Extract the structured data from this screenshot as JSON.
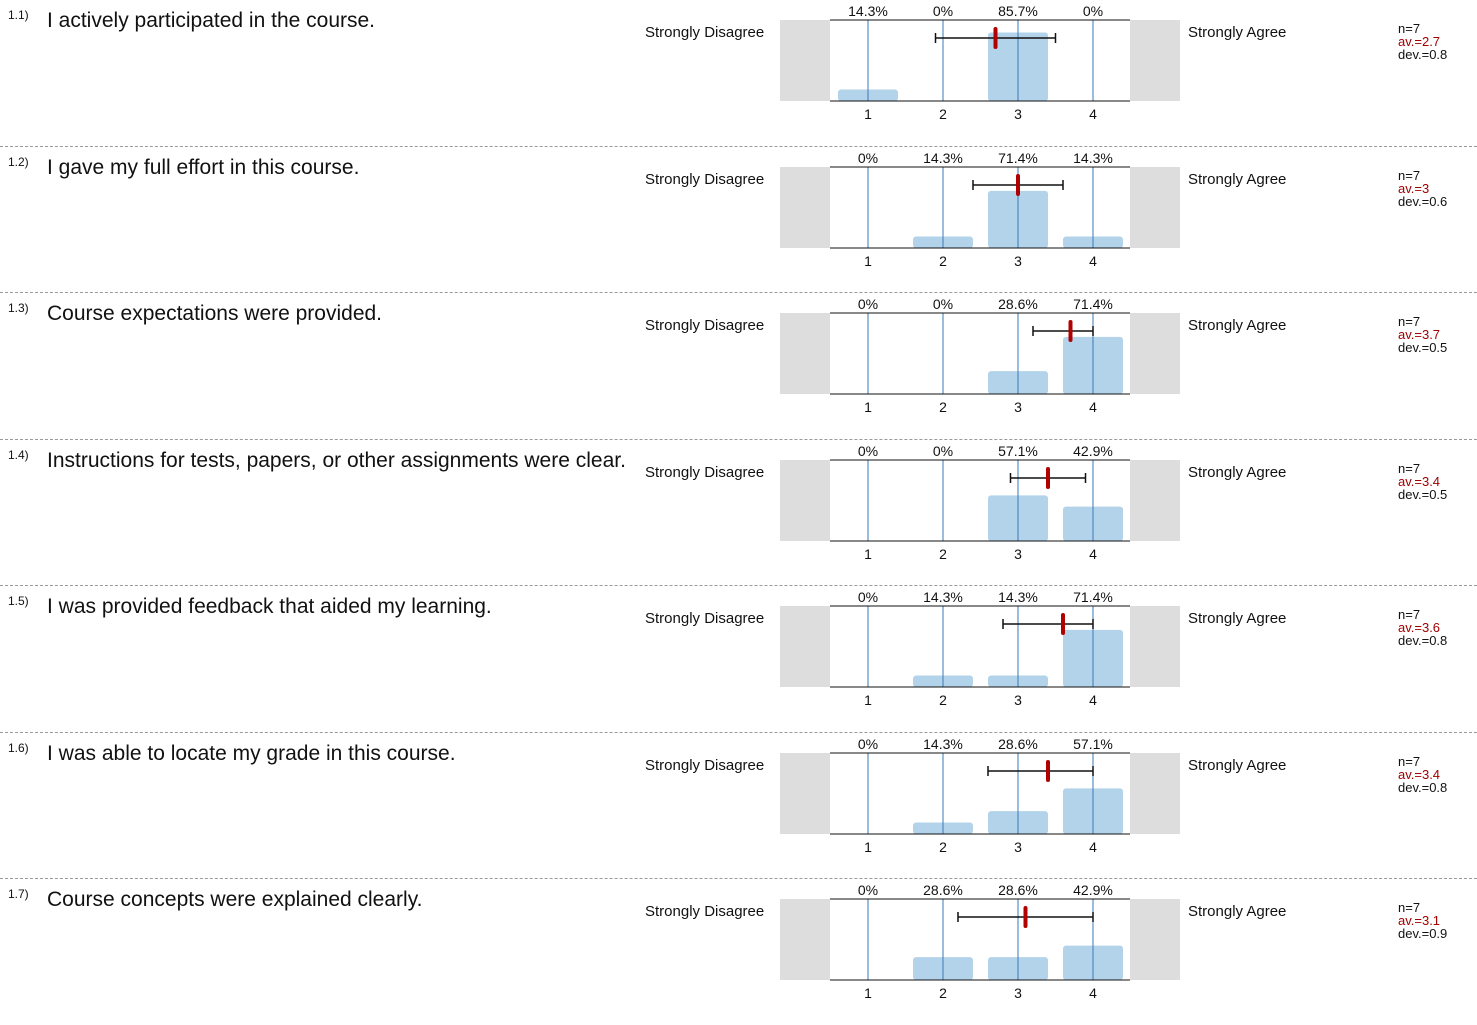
{
  "scale_left_label": "Strongly Disagree",
  "scale_right_label": "Strongly Agree",
  "colors": {
    "bar": "#b3d3ea",
    "gridline": "#3a7ab8",
    "mean": "#b00000",
    "side_box": "#dddddd",
    "dev": "#a00000"
  },
  "chart_data": [
    {
      "type": "bar",
      "number": "1.1)",
      "question": "I actively participated in the course.",
      "categories": [
        "1",
        "2",
        "3",
        "4"
      ],
      "percent_labels": [
        "14.3%",
        "0%",
        "85.7%",
        "0%"
      ],
      "values": [
        14.3,
        0,
        85.7,
        0
      ],
      "mean": 2.7,
      "std_dev": 0.8,
      "n_text": "n=7",
      "av_text": "av.=2.7",
      "dev_text": "dev.=0.8"
    },
    {
      "type": "bar",
      "number": "1.2)",
      "question": "I gave my full effort in this course.",
      "categories": [
        "1",
        "2",
        "3",
        "4"
      ],
      "percent_labels": [
        "0%",
        "14.3%",
        "71.4%",
        "14.3%"
      ],
      "values": [
        0,
        14.3,
        71.4,
        14.3
      ],
      "mean": 3,
      "std_dev": 0.6,
      "n_text": "n=7",
      "av_text": "av.=3",
      "dev_text": "dev.=0.6"
    },
    {
      "type": "bar",
      "number": "1.3)",
      "question": "Course expectations were provided.",
      "categories": [
        "1",
        "2",
        "3",
        "4"
      ],
      "percent_labels": [
        "0%",
        "0%",
        "28.6%",
        "71.4%"
      ],
      "values": [
        0,
        0,
        28.6,
        71.4
      ],
      "mean": 3.7,
      "std_dev": 0.5,
      "n_text": "n=7",
      "av_text": "av.=3.7",
      "dev_text": "dev.=0.5"
    },
    {
      "type": "bar",
      "number": "1.4)",
      "question": "Instructions for tests, papers, or other assignments were clear.",
      "categories": [
        "1",
        "2",
        "3",
        "4"
      ],
      "percent_labels": [
        "0%",
        "0%",
        "57.1%",
        "42.9%"
      ],
      "values": [
        0,
        0,
        57.1,
        42.9
      ],
      "mean": 3.4,
      "std_dev": 0.5,
      "n_text": "n=7",
      "av_text": "av.=3.4",
      "dev_text": "dev.=0.5"
    },
    {
      "type": "bar",
      "number": "1.5)",
      "question": "I was provided feedback that aided my learning.",
      "categories": [
        "1",
        "2",
        "3",
        "4"
      ],
      "percent_labels": [
        "0%",
        "14.3%",
        "14.3%",
        "71.4%"
      ],
      "values": [
        0,
        14.3,
        14.3,
        71.4
      ],
      "mean": 3.6,
      "std_dev": 0.8,
      "n_text": "n=7",
      "av_text": "av.=3.6",
      "dev_text": "dev.=0.8"
    },
    {
      "type": "bar",
      "number": "1.6)",
      "question": "I was able to locate my grade in this course.",
      "categories": [
        "1",
        "2",
        "3",
        "4"
      ],
      "percent_labels": [
        "0%",
        "14.3%",
        "28.6%",
        "57.1%"
      ],
      "values": [
        0,
        14.3,
        28.6,
        57.1
      ],
      "mean": 3.4,
      "std_dev": 0.8,
      "n_text": "n=7",
      "av_text": "av.=3.4",
      "dev_text": "dev.=0.8"
    },
    {
      "type": "bar",
      "number": "1.7)",
      "question": "Course concepts were explained clearly.",
      "categories": [
        "1",
        "2",
        "3",
        "4"
      ],
      "percent_labels": [
        "0%",
        "28.6%",
        "28.6%",
        "42.9%"
      ],
      "values": [
        0,
        28.6,
        28.6,
        42.9
      ],
      "mean": 3.1,
      "std_dev": 0.9,
      "n_text": "n=7",
      "av_text": "av.=3.1",
      "dev_text": "dev.=0.9"
    }
  ]
}
